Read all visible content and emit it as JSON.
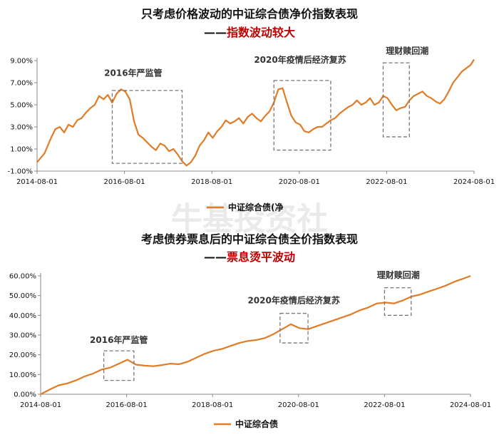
{
  "watermark": "牛基投资社",
  "chart_data": [
    {
      "type": "line",
      "title": "只考虑价格波动的中证综合债净价指数表现",
      "subtitle_dash": "——",
      "subtitle_red": "指数波动较大",
      "color": "#e07b26",
      "ylim": [
        -1.0,
        9.0
      ],
      "ytick_labels": [
        "-1.00%",
        "1.00%",
        "3.00%",
        "5.00%",
        "7.00%",
        "9.00%"
      ],
      "yticks": [
        -1,
        1,
        3,
        5,
        7,
        9
      ],
      "x_tick_labels": [
        "2014-08-01",
        "2016-08-01",
        "2018-08-01",
        "2020-08-01",
        "2022-08-01",
        "2024-08-01"
      ],
      "x_ticks": [
        2014.58,
        2016.58,
        2018.58,
        2020.58,
        2022.58,
        2024.58
      ],
      "xlim": [
        2014.58,
        2024.58
      ],
      "legend": [
        "中证综合债(净"
      ],
      "annotations": [
        "2016年严监管",
        "2020年疫情后经济复苏",
        "理财赎回潮"
      ],
      "x": [
        2014.58,
        2014.75,
        2014.9,
        2015.0,
        2015.1,
        2015.2,
        2015.3,
        2015.4,
        2015.5,
        2015.6,
        2015.7,
        2015.8,
        2015.9,
        2016.0,
        2016.1,
        2016.2,
        2016.3,
        2016.4,
        2016.5,
        2016.6,
        2016.7,
        2016.8,
        2016.9,
        2017.0,
        2017.1,
        2017.2,
        2017.3,
        2017.4,
        2017.5,
        2017.6,
        2017.7,
        2017.8,
        2017.9,
        2018.0,
        2018.1,
        2018.2,
        2018.3,
        2018.4,
        2018.5,
        2018.6,
        2018.7,
        2018.8,
        2018.9,
        2019.0,
        2019.1,
        2019.2,
        2019.3,
        2019.4,
        2019.5,
        2019.6,
        2019.7,
        2019.8,
        2019.9,
        2020.0,
        2020.1,
        2020.2,
        2020.3,
        2020.4,
        2020.5,
        2020.6,
        2020.7,
        2020.8,
        2020.9,
        2021.0,
        2021.1,
        2021.2,
        2021.3,
        2021.4,
        2021.5,
        2021.6,
        2021.7,
        2021.8,
        2021.9,
        2022.0,
        2022.1,
        2022.2,
        2022.3,
        2022.4,
        2022.5,
        2022.6,
        2022.7,
        2022.8,
        2022.9,
        2023.0,
        2023.1,
        2023.2,
        2023.3,
        2023.4,
        2023.5,
        2023.6,
        2023.7,
        2023.8,
        2023.9,
        2024.0,
        2024.1,
        2024.2,
        2024.3,
        2024.4,
        2024.5,
        2024.58
      ],
      "y": [
        -0.2,
        0.6,
        2.0,
        2.8,
        3.0,
        2.5,
        3.2,
        3.0,
        3.6,
        3.8,
        4.3,
        4.7,
        5.0,
        5.8,
        5.5,
        5.9,
        5.2,
        6.0,
        6.4,
        6.2,
        5.5,
        3.5,
        2.3,
        2.0,
        1.6,
        1.2,
        0.9,
        1.5,
        1.3,
        0.8,
        1.0,
        0.5,
        -0.1,
        -0.5,
        -0.2,
        0.4,
        1.3,
        1.8,
        2.5,
        2.0,
        2.6,
        3.0,
        3.6,
        3.3,
        3.5,
        3.8,
        3.3,
        3.9,
        4.2,
        3.8,
        3.5,
        4.0,
        4.4,
        5.2,
        6.4,
        6.5,
        5.2,
        4.0,
        3.4,
        3.2,
        2.6,
        2.5,
        2.8,
        3.0,
        3.0,
        3.3,
        3.6,
        3.8,
        4.2,
        4.5,
        4.8,
        5.0,
        5.4,
        5.0,
        5.2,
        5.6,
        5.0,
        5.2,
        5.8,
        5.6,
        5.0,
        4.5,
        4.7,
        4.8,
        5.4,
        5.8,
        6.0,
        6.2,
        5.8,
        5.6,
        5.3,
        5.1,
        5.5,
        6.2,
        7.0,
        7.5,
        8.0,
        8.3,
        8.6,
        9.1
      ]
    },
    {
      "type": "line",
      "title": "考虑债券票息后的中证综合债全价指数表现",
      "subtitle_dash": "——",
      "subtitle_red": "票息烫平波动",
      "color": "#e07b26",
      "ylim": [
        0,
        60
      ],
      "ytick_labels": [
        "0.00%",
        "10.00%",
        "20.00%",
        "30.00%",
        "40.00%",
        "50.00%",
        "60.00%"
      ],
      "yticks": [
        0,
        10,
        20,
        30,
        40,
        50,
        60
      ],
      "x_tick_labels": [
        "2014-08-01",
        "2016-08-01",
        "2018-08-01",
        "2020-08-01",
        "2022-08-01",
        "2024-08-01"
      ],
      "x_ticks": [
        2014.58,
        2016.58,
        2018.58,
        2020.58,
        2022.58,
        2024.58
      ],
      "xlim": [
        2014.58,
        2024.58
      ],
      "legend": [
        "中证综合债"
      ],
      "annotations": [
        "2016年严监管",
        "2020年疫情后经济复苏",
        "理财赎回潮"
      ],
      "x": [
        2014.58,
        2014.8,
        2015.0,
        2015.2,
        2015.4,
        2015.6,
        2015.8,
        2016.0,
        2016.2,
        2016.4,
        2016.6,
        2016.8,
        2017.0,
        2017.2,
        2017.4,
        2017.6,
        2017.8,
        2018.0,
        2018.2,
        2018.4,
        2018.6,
        2018.8,
        2019.0,
        2019.2,
        2019.4,
        2019.6,
        2019.8,
        2020.0,
        2020.2,
        2020.4,
        2020.6,
        2020.8,
        2021.0,
        2021.2,
        2021.4,
        2021.6,
        2021.8,
        2022.0,
        2022.2,
        2022.4,
        2022.6,
        2022.8,
        2023.0,
        2023.2,
        2023.4,
        2023.6,
        2023.8,
        2024.0,
        2024.2,
        2024.4,
        2024.58
      ],
      "y": [
        0,
        2.5,
        4.5,
        5.5,
        7.0,
        9.0,
        10.5,
        12.5,
        13.5,
        15.5,
        17.5,
        15.0,
        14.5,
        14.2,
        14.8,
        15.5,
        15.2,
        16.5,
        18.5,
        20.5,
        22.0,
        23.0,
        24.5,
        26.0,
        27.0,
        27.5,
        28.5,
        30.5,
        33.0,
        35.5,
        33.5,
        33.0,
        34.5,
        36.0,
        37.5,
        39.0,
        40.5,
        42.5,
        44.0,
        46.0,
        46.5,
        46.0,
        47.5,
        49.5,
        50.5,
        52.0,
        53.5,
        55.0,
        57.0,
        58.5,
        60.0
      ]
    }
  ]
}
